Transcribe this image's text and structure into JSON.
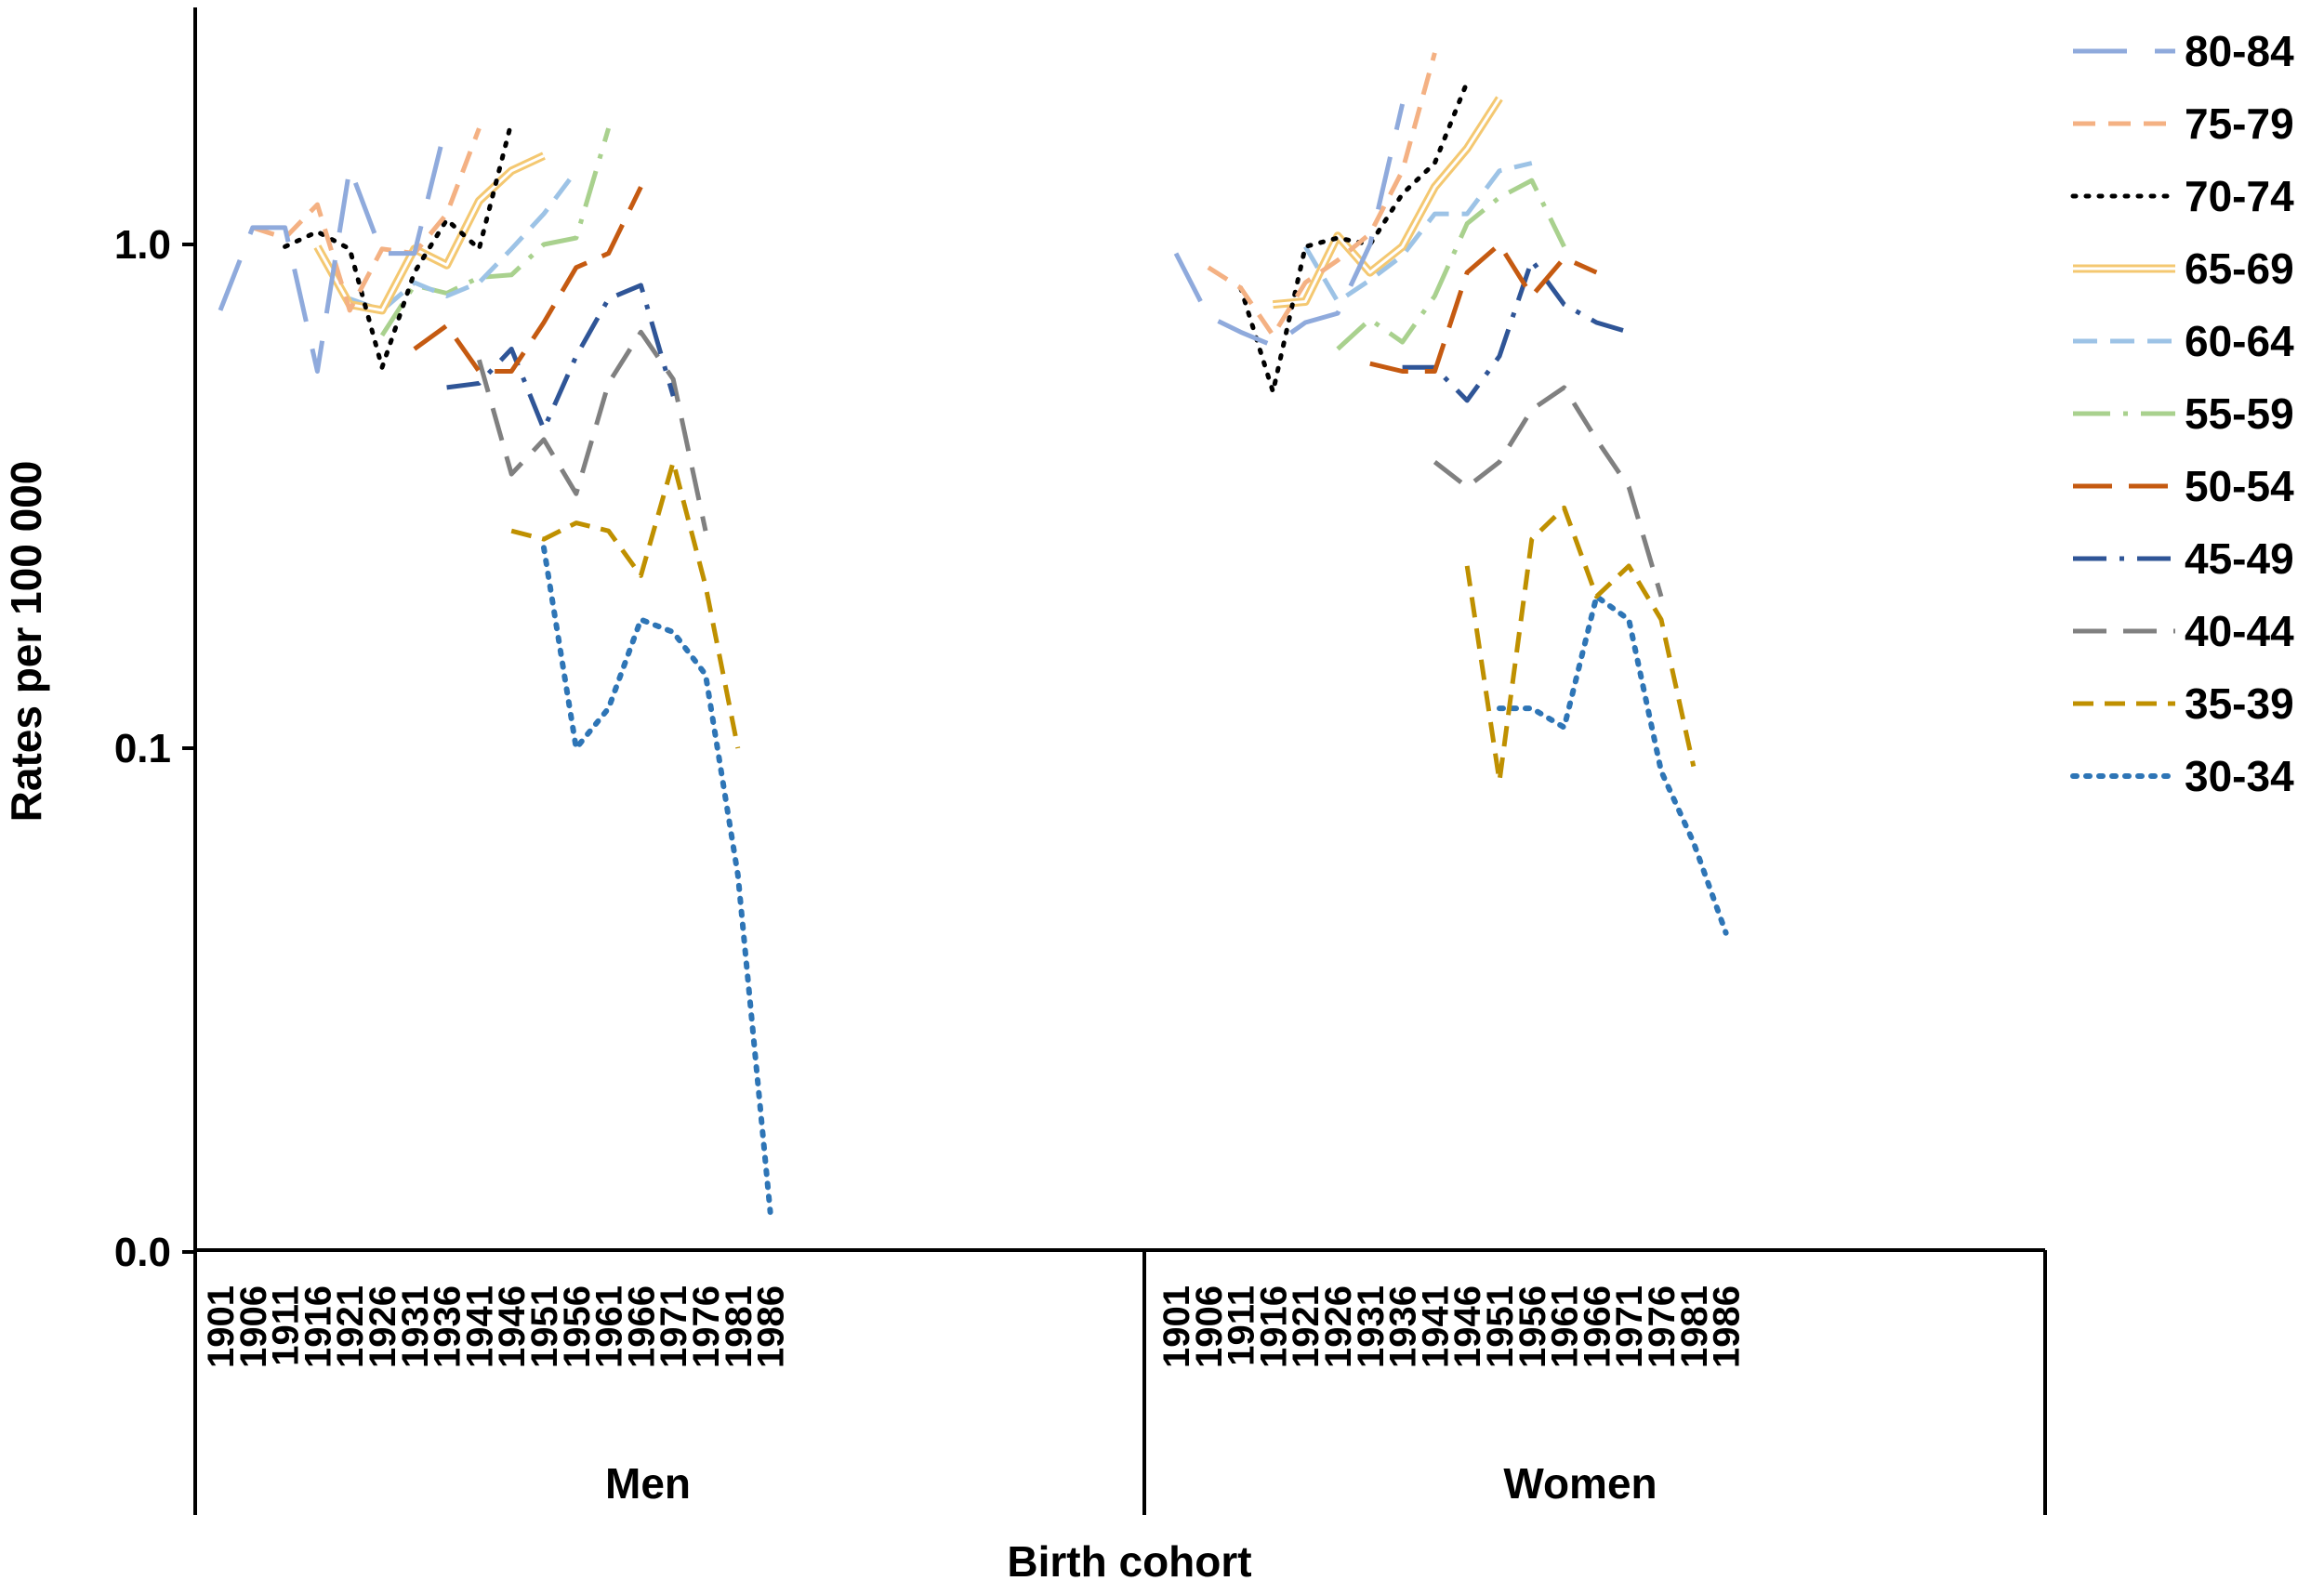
{
  "chart_data": {
    "type": "line",
    "xlabel": "Birth cohort",
    "ylabel": "Rates per 100 000",
    "y_scale": "log",
    "y_ticks": [
      {
        "value": 1.0,
        "label": "1.0"
      },
      {
        "value": 0.1,
        "label": "0.1"
      },
      {
        "value": 0.01,
        "label": "0.0"
      }
    ],
    "ylim": [
      0.01,
      2.4
    ],
    "x_categories": [
      "1901",
      "1906",
      "1911",
      "1916",
      "1921",
      "1926",
      "1931",
      "1936",
      "1941",
      "1946",
      "1951",
      "1956",
      "1961",
      "1966",
      "1971",
      "1976",
      "1981",
      "1986"
    ],
    "groups": [
      "Men",
      "Women"
    ],
    "legend_position": "right",
    "grid": false,
    "series": [
      {
        "name": "80-84",
        "color": "#8faadc",
        "dash": "58,30",
        "width": 5,
        "double": false,
        "men": [
          0.74,
          1.08,
          1.08,
          0.56,
          1.42,
          0.96,
          0.96,
          1.75,
          null,
          null,
          null,
          null,
          null,
          null,
          null,
          null,
          null,
          null
        ],
        "women": [
          0.96,
          0.72,
          0.67,
          0.63,
          0.7,
          0.73,
          1.0,
          1.9,
          null,
          null,
          null,
          null,
          null,
          null,
          null,
          null,
          null,
          null
        ]
      },
      {
        "name": "75-79",
        "color": "#f4b183",
        "dash": "24,14",
        "width": 5,
        "double": false,
        "men": [
          null,
          1.08,
          1.03,
          1.2,
          0.74,
          0.98,
          0.96,
          1.15,
          1.7,
          null,
          null,
          null,
          null,
          null,
          null,
          null,
          null,
          null
        ],
        "women": [
          null,
          0.9,
          0.82,
          0.66,
          0.84,
          0.93,
          1.05,
          1.4,
          2.4,
          null,
          null,
          null,
          null,
          null,
          null,
          null,
          null,
          null
        ]
      },
      {
        "name": "70-74",
        "color": "#000000",
        "dash": "3,11",
        "width": 5,
        "double": false,
        "men": [
          null,
          null,
          0.99,
          1.06,
          0.98,
          0.57,
          0.88,
          1.12,
          0.98,
          1.75,
          null,
          null,
          null,
          null,
          null,
          null,
          null,
          null
        ],
        "women": [
          null,
          null,
          0.82,
          0.51,
          0.99,
          1.03,
          1.0,
          1.26,
          1.45,
          2.1,
          null,
          null,
          null,
          null,
          null,
          null,
          null,
          null
        ]
      },
      {
        "name": "65-69",
        "color": "#f4c871",
        "dash": "",
        "width": 9,
        "double": true,
        "men": [
          null,
          null,
          null,
          0.99,
          0.76,
          0.74,
          0.98,
          0.91,
          1.22,
          1.4,
          1.5,
          null,
          null,
          null,
          null,
          null,
          null,
          null
        ],
        "women": [
          null,
          null,
          null,
          0.76,
          0.77,
          1.04,
          0.88,
          0.99,
          1.3,
          1.55,
          1.95,
          null,
          null,
          null,
          null,
          null,
          null,
          null
        ]
      },
      {
        "name": "60-64",
        "color": "#9dc3e6",
        "dash": "26,14",
        "width": 5,
        "double": false,
        "men": [
          null,
          null,
          null,
          null,
          0.78,
          0.74,
          0.84,
          0.79,
          0.84,
          0.98,
          1.15,
          1.4,
          null,
          null,
          null,
          null,
          null,
          null
        ],
        "women": [
          null,
          null,
          null,
          null,
          0.99,
          0.77,
          0.85,
          0.95,
          1.15,
          1.15,
          1.4,
          1.45,
          null,
          null,
          null,
          null,
          null,
          null
        ]
      },
      {
        "name": "55-59",
        "color": "#a9d18e",
        "dash": "40,14,5,14",
        "width": 5,
        "double": false,
        "men": [
          null,
          null,
          null,
          null,
          null,
          0.66,
          0.83,
          0.8,
          0.86,
          0.87,
          1.0,
          1.03,
          1.7,
          null,
          null,
          null,
          null,
          null
        ],
        "women": [
          null,
          null,
          null,
          null,
          null,
          0.62,
          0.71,
          0.64,
          0.79,
          1.1,
          1.24,
          1.34,
          0.99,
          null,
          null,
          null,
          null,
          null
        ]
      },
      {
        "name": "50-54",
        "color": "#c55a11",
        "dash": "42,18",
        "width": 5,
        "double": false,
        "men": [
          null,
          null,
          null,
          null,
          null,
          null,
          0.62,
          0.69,
          0.56,
          0.56,
          0.7,
          0.9,
          0.96,
          1.3,
          null,
          null,
          null,
          null
        ],
        "women": [
          null,
          null,
          null,
          null,
          null,
          null,
          0.58,
          0.56,
          0.56,
          0.88,
          1.0,
          0.79,
          0.94,
          0.88,
          null,
          null,
          null,
          null
        ]
      },
      {
        "name": "45-49",
        "color": "#2f5597",
        "dash": "36,14,5,14",
        "width": 5,
        "double": false,
        "men": [
          null,
          null,
          null,
          null,
          null,
          null,
          null,
          0.52,
          0.53,
          0.62,
          0.43,
          0.6,
          0.78,
          0.83,
          0.5,
          null,
          null,
          null
        ],
        "women": [
          null,
          null,
          null,
          null,
          null,
          null,
          null,
          0.57,
          0.57,
          0.49,
          0.6,
          0.93,
          0.76,
          0.7,
          0.67,
          null,
          null,
          null
        ]
      },
      {
        "name": "40-44",
        "color": "#808080",
        "dash": "36,18",
        "width": 5,
        "double": false,
        "men": [
          null,
          null,
          null,
          null,
          null,
          null,
          null,
          null,
          0.59,
          0.35,
          0.41,
          0.32,
          0.53,
          0.67,
          0.54,
          0.27,
          null,
          null
        ],
        "women": [
          null,
          null,
          null,
          null,
          null,
          null,
          null,
          null,
          0.37,
          0.33,
          0.37,
          0.47,
          0.52,
          0.41,
          0.33,
          0.2,
          null,
          null
        ]
      },
      {
        "name": "35-39",
        "color": "#bf9000",
        "dash": "22,12",
        "width": 5,
        "double": false,
        "men": [
          null,
          null,
          null,
          null,
          null,
          null,
          null,
          null,
          null,
          0.27,
          0.26,
          0.28,
          0.27,
          0.22,
          0.37,
          0.21,
          0.1,
          null
        ],
        "women": [
          null,
          null,
          null,
          null,
          null,
          null,
          null,
          null,
          null,
          0.23,
          0.086,
          0.26,
          0.3,
          0.2,
          0.23,
          0.18,
          0.092,
          null
        ]
      },
      {
        "name": "30-34",
        "color": "#2e75b6",
        "dash": "4,10",
        "width": 6,
        "double": false,
        "men": [
          null,
          null,
          null,
          null,
          null,
          null,
          null,
          null,
          null,
          null,
          0.25,
          0.1,
          0.12,
          0.18,
          0.17,
          0.14,
          0.056,
          0.012
        ],
        "women": [
          null,
          null,
          null,
          null,
          null,
          null,
          null,
          null,
          null,
          null,
          0.12,
          0.12,
          0.11,
          0.2,
          0.18,
          0.09,
          0.065,
          0.043
        ]
      }
    ]
  }
}
